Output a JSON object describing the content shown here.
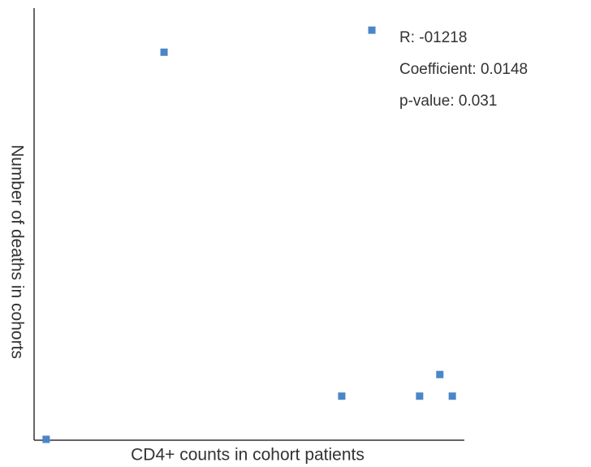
{
  "chart_data": {
    "type": "scatter",
    "x_label": "CD4+ counts in cohort patients",
    "y_label": "Number of deaths in cohorts",
    "annotations": [
      "R: -01218",
      "Coefficient: 0.0148",
      "p-value:  0.031"
    ],
    "color": "#4a86c8",
    "x": [
      2.8,
      30.2,
      78.5,
      71.5,
      89.6,
      94.3,
      97.2
    ],
    "values": [
      0.2,
      89.8,
      94.9,
      10.2,
      10.2,
      15.2,
      10.2
    ],
    "xlim": [
      0,
      100
    ],
    "ylim": [
      0,
      100
    ]
  }
}
